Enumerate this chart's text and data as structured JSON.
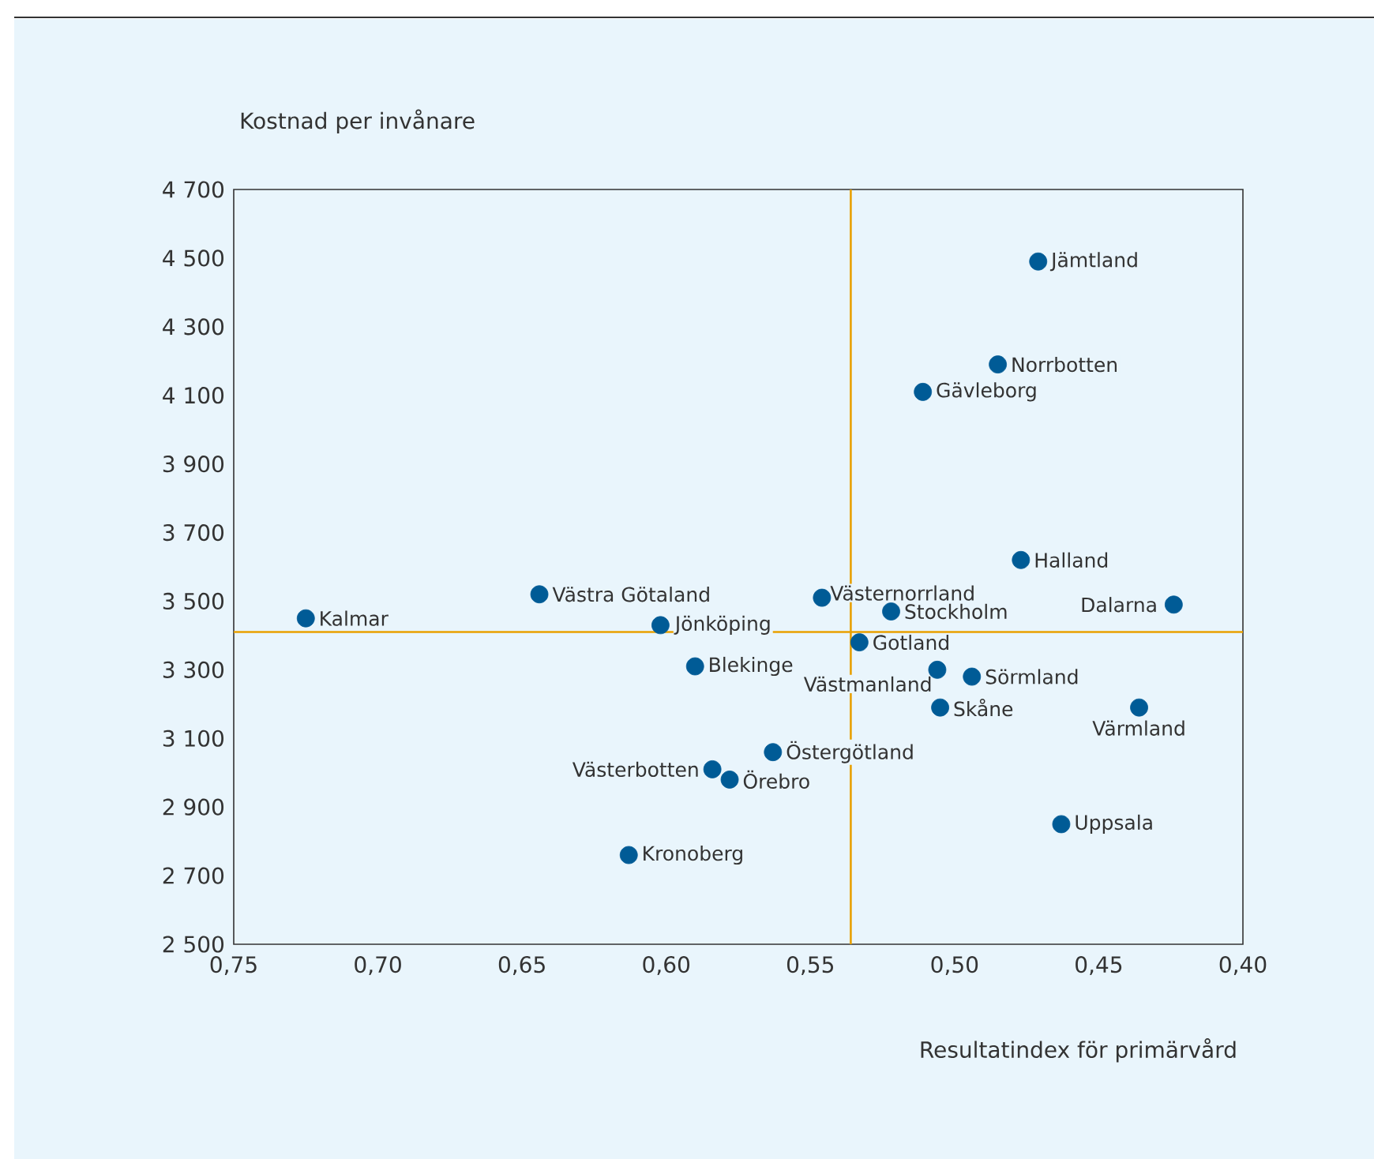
{
  "chart_data": {
    "type": "scatter",
    "xlabel": "Resultatindex för primärvård",
    "ylabel": "Kostnad per invånare",
    "xlim": [
      0.75,
      0.4
    ],
    "ylim": [
      2500,
      4700
    ],
    "xticks": [
      {
        "value": 0.75,
        "label": "0,75"
      },
      {
        "value": 0.7,
        "label": "0,70"
      },
      {
        "value": 0.65,
        "label": "0,65"
      },
      {
        "value": 0.6,
        "label": "0,60"
      },
      {
        "value": 0.55,
        "label": "0,55"
      },
      {
        "value": 0.5,
        "label": "0,50"
      },
      {
        "value": 0.45,
        "label": "0,45"
      },
      {
        "value": 0.4,
        "label": "0,40"
      }
    ],
    "yticks": [
      {
        "value": 2500,
        "label": "2 500"
      },
      {
        "value": 2700,
        "label": "2 700"
      },
      {
        "value": 2900,
        "label": "2 900"
      },
      {
        "value": 3100,
        "label": "3 100"
      },
      {
        "value": 3300,
        "label": "3 300"
      },
      {
        "value": 3500,
        "label": "3 500"
      },
      {
        "value": 3700,
        "label": "3 700"
      },
      {
        "value": 3900,
        "label": "3 900"
      },
      {
        "value": 4100,
        "label": "4 100"
      },
      {
        "value": 4300,
        "label": "4 300"
      },
      {
        "value": 4500,
        "label": "4 500"
      },
      {
        "value": 4700,
        "label": "4 700"
      }
    ],
    "marker": "circle",
    "grid": false,
    "series": [
      {
        "color": "#005b96",
        "x": [
          0.725,
          0.644,
          0.602,
          0.59,
          0.584,
          0.578,
          0.613,
          0.563,
          0.546,
          0.522,
          0.533,
          0.506,
          0.494,
          0.505,
          0.511,
          0.485,
          0.471,
          0.477,
          0.424,
          0.436,
          0.463
        ],
        "values": [
          3450,
          3520,
          3430,
          3310,
          3010,
          2980,
          2760,
          3060,
          3510,
          3470,
          3380,
          3300,
          3280,
          3190,
          4110,
          4190,
          4490,
          3620,
          3490,
          3190,
          2850
        ]
      }
    ],
    "ref_lines": [
      {
        "axis": "x",
        "value": 0.536,
        "color": "#e8a000"
      },
      {
        "axis": "y",
        "value": 3410,
        "color": "#e8a000"
      }
    ],
    "annotations": [
      {
        "text": "Kalmar",
        "x": 0.725,
        "y": 3450
      },
      {
        "text": "Västra Götaland",
        "x": 0.644,
        "y": 3520
      },
      {
        "text": "Jönköping",
        "x": 0.602,
        "y": 3430
      },
      {
        "text": "Blekinge",
        "x": 0.59,
        "y": 3310
      },
      {
        "text": "Västerbotten",
        "x": 0.584,
        "y": 3010
      },
      {
        "text": "Örebro",
        "x": 0.578,
        "y": 2980
      },
      {
        "text": "Kronoberg",
        "x": 0.613,
        "y": 2760
      },
      {
        "text": "Östergötland",
        "x": 0.563,
        "y": 3060
      },
      {
        "text": "Västernorrland",
        "x": 0.546,
        "y": 3510
      },
      {
        "text": "Stockholm",
        "x": 0.522,
        "y": 3470
      },
      {
        "text": "Gotland",
        "x": 0.533,
        "y": 3380
      },
      {
        "text": "Västmanland",
        "x": 0.506,
        "y": 3300
      },
      {
        "text": "Sörmland",
        "x": 0.494,
        "y": 3280
      },
      {
        "text": "Skåne",
        "x": 0.505,
        "y": 3190
      },
      {
        "text": "Gävleborg",
        "x": 0.511,
        "y": 4110
      },
      {
        "text": "Norrbotten",
        "x": 0.485,
        "y": 4190
      },
      {
        "text": "Jämtland",
        "x": 0.471,
        "y": 4490
      },
      {
        "text": "Halland",
        "x": 0.477,
        "y": 3620
      },
      {
        "text": "Dalarna",
        "x": 0.424,
        "y": 3490
      },
      {
        "text": "Värmland",
        "x": 0.436,
        "y": 3190
      },
      {
        "text": "Uppsala",
        "x": 0.463,
        "y": 2850
      }
    ]
  }
}
